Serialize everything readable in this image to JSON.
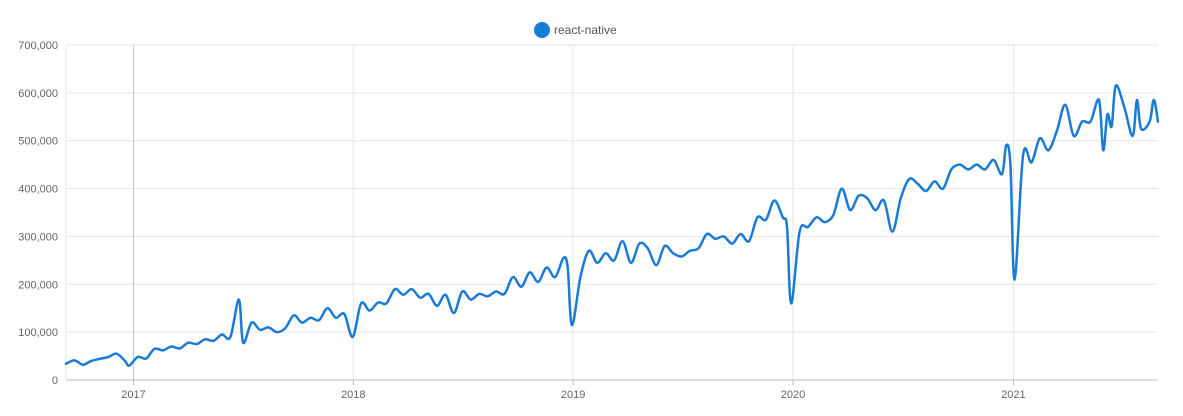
{
  "chart_data": {
    "type": "line",
    "title": "",
    "xlabel": "",
    "ylabel": "",
    "legend": {
      "placement": "top-center"
    },
    "grid": true,
    "x_range": [
      "2016-09-11",
      "2021-08-29"
    ],
    "ylim": [
      0,
      700000
    ],
    "y_ticks": [
      0,
      100000,
      200000,
      300000,
      400000,
      500000,
      600000,
      700000
    ],
    "y_tick_labels": [
      "0",
      "100,000",
      "200,000",
      "300,000",
      "400,000",
      "500,000",
      "600,000",
      "700,000"
    ],
    "x_ticks": [
      "2017-01-01",
      "2018-01-01",
      "2019-01-01",
      "2020-01-01",
      "2021-01-01"
    ],
    "x_tick_labels": [
      "2017",
      "2018",
      "2019",
      "2020",
      "2021"
    ],
    "series": [
      {
        "name": "react-native",
        "color": "#1a7bd6",
        "points": [
          [
            "2016-09-11",
            34000
          ],
          [
            "2016-09-25",
            41000
          ],
          [
            "2016-10-09",
            32000
          ],
          [
            "2016-10-23",
            40000
          ],
          [
            "2016-11-06",
            44000
          ],
          [
            "2016-11-20",
            48000
          ],
          [
            "2016-12-04",
            55000
          ],
          [
            "2016-12-18",
            40000
          ],
          [
            "2016-12-25",
            30000
          ],
          [
            "2017-01-08",
            48000
          ],
          [
            "2017-01-22",
            45000
          ],
          [
            "2017-02-05",
            65000
          ],
          [
            "2017-02-19",
            62000
          ],
          [
            "2017-03-05",
            70000
          ],
          [
            "2017-03-19",
            66000
          ],
          [
            "2017-04-02",
            78000
          ],
          [
            "2017-04-16",
            75000
          ],
          [
            "2017-04-30",
            85000
          ],
          [
            "2017-05-14",
            82000
          ],
          [
            "2017-05-28",
            95000
          ],
          [
            "2017-06-11",
            90000
          ],
          [
            "2017-06-25",
            168000
          ],
          [
            "2017-07-02",
            78000
          ],
          [
            "2017-07-16",
            120000
          ],
          [
            "2017-07-30",
            105000
          ],
          [
            "2017-08-13",
            110000
          ],
          [
            "2017-08-27",
            100000
          ],
          [
            "2017-09-10",
            108000
          ],
          [
            "2017-09-24",
            135000
          ],
          [
            "2017-10-08",
            120000
          ],
          [
            "2017-10-22",
            130000
          ],
          [
            "2017-11-05",
            125000
          ],
          [
            "2017-11-19",
            150000
          ],
          [
            "2017-12-03",
            130000
          ],
          [
            "2017-12-17",
            138000
          ],
          [
            "2017-12-31",
            90000
          ],
          [
            "2018-01-14",
            160000
          ],
          [
            "2018-01-28",
            145000
          ],
          [
            "2018-02-11",
            162000
          ],
          [
            "2018-02-25",
            160000
          ],
          [
            "2018-03-11",
            190000
          ],
          [
            "2018-03-25",
            178000
          ],
          [
            "2018-04-08",
            190000
          ],
          [
            "2018-04-22",
            172000
          ],
          [
            "2018-05-06",
            180000
          ],
          [
            "2018-05-20",
            155000
          ],
          [
            "2018-06-03",
            178000
          ],
          [
            "2018-06-17",
            140000
          ],
          [
            "2018-07-01",
            185000
          ],
          [
            "2018-07-15",
            168000
          ],
          [
            "2018-07-29",
            180000
          ],
          [
            "2018-08-12",
            175000
          ],
          [
            "2018-08-26",
            185000
          ],
          [
            "2018-09-09",
            180000
          ],
          [
            "2018-09-23",
            215000
          ],
          [
            "2018-10-07",
            195000
          ],
          [
            "2018-10-21",
            225000
          ],
          [
            "2018-11-04",
            205000
          ],
          [
            "2018-11-18",
            235000
          ],
          [
            "2018-12-02",
            215000
          ],
          [
            "2018-12-16",
            255000
          ],
          [
            "2018-12-23",
            235000
          ],
          [
            "2018-12-30",
            115000
          ],
          [
            "2019-01-13",
            215000
          ],
          [
            "2019-01-27",
            270000
          ],
          [
            "2019-02-10",
            245000
          ],
          [
            "2019-02-24",
            265000
          ],
          [
            "2019-03-10",
            250000
          ],
          [
            "2019-03-24",
            290000
          ],
          [
            "2019-04-07",
            245000
          ],
          [
            "2019-04-21",
            285000
          ],
          [
            "2019-05-05",
            275000
          ],
          [
            "2019-05-19",
            240000
          ],
          [
            "2019-06-02",
            280000
          ],
          [
            "2019-06-16",
            265000
          ],
          [
            "2019-06-30",
            258000
          ],
          [
            "2019-07-14",
            270000
          ],
          [
            "2019-07-28",
            275000
          ],
          [
            "2019-08-11",
            305000
          ],
          [
            "2019-08-25",
            295000
          ],
          [
            "2019-09-08",
            300000
          ],
          [
            "2019-09-22",
            285000
          ],
          [
            "2019-10-06",
            305000
          ],
          [
            "2019-10-20",
            290000
          ],
          [
            "2019-11-03",
            340000
          ],
          [
            "2019-11-17",
            335000
          ],
          [
            "2019-12-01",
            375000
          ],
          [
            "2019-12-15",
            340000
          ],
          [
            "2019-12-22",
            320000
          ],
          [
            "2019-12-29",
            160000
          ],
          [
            "2020-01-12",
            310000
          ],
          [
            "2020-01-26",
            320000
          ],
          [
            "2020-02-09",
            340000
          ],
          [
            "2020-02-23",
            330000
          ],
          [
            "2020-03-08",
            345000
          ],
          [
            "2020-03-22",
            400000
          ],
          [
            "2020-04-05",
            355000
          ],
          [
            "2020-04-19",
            385000
          ],
          [
            "2020-05-03",
            380000
          ],
          [
            "2020-05-17",
            355000
          ],
          [
            "2020-05-31",
            375000
          ],
          [
            "2020-06-14",
            310000
          ],
          [
            "2020-06-28",
            380000
          ],
          [
            "2020-07-12",
            420000
          ],
          [
            "2020-07-26",
            410000
          ],
          [
            "2020-08-09",
            395000
          ],
          [
            "2020-08-23",
            415000
          ],
          [
            "2020-09-06",
            400000
          ],
          [
            "2020-09-20",
            440000
          ],
          [
            "2020-10-04",
            450000
          ],
          [
            "2020-10-18",
            440000
          ],
          [
            "2020-11-01",
            450000
          ],
          [
            "2020-11-15",
            440000
          ],
          [
            "2020-11-29",
            460000
          ],
          [
            "2020-12-13",
            430000
          ],
          [
            "2020-12-20",
            490000
          ],
          [
            "2020-12-27",
            450000
          ],
          [
            "2021-01-03",
            210000
          ],
          [
            "2021-01-17",
            470000
          ],
          [
            "2021-01-31",
            455000
          ],
          [
            "2021-02-14",
            505000
          ],
          [
            "2021-02-28",
            480000
          ],
          [
            "2021-03-14",
            520000
          ],
          [
            "2021-03-28",
            575000
          ],
          [
            "2021-04-11",
            510000
          ],
          [
            "2021-04-25",
            540000
          ],
          [
            "2021-05-09",
            540000
          ],
          [
            "2021-05-23",
            585000
          ],
          [
            "2021-05-30",
            480000
          ],
          [
            "2021-06-06",
            555000
          ],
          [
            "2021-06-13",
            530000
          ],
          [
            "2021-06-20",
            615000
          ],
          [
            "2021-07-04",
            570000
          ],
          [
            "2021-07-18",
            510000
          ],
          [
            "2021-07-25",
            585000
          ],
          [
            "2021-08-01",
            525000
          ],
          [
            "2021-08-15",
            540000
          ],
          [
            "2021-08-22",
            585000
          ],
          [
            "2021-08-29",
            540000
          ]
        ]
      }
    ]
  }
}
